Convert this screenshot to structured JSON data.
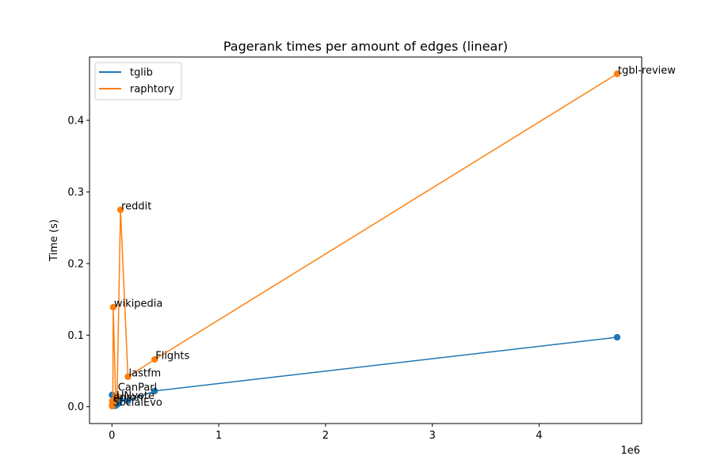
{
  "chart_data": {
    "type": "line",
    "title": "Pagerank times per amount of edges (linear)",
    "xlabel": "",
    "ylabel": "Time (s)",
    "x_offset_text": "1e6",
    "xlim": [
      -210000,
      4960000
    ],
    "ylim": [
      -0.0235,
      0.4885
    ],
    "xticks": [
      0,
      1000000,
      2000000,
      3000000,
      4000000
    ],
    "xtick_labels": [
      "0",
      "1",
      "2",
      "3",
      "4"
    ],
    "yticks": [
      0.0,
      0.1,
      0.2,
      0.3,
      0.4
    ],
    "ytick_labels": [
      "0.0",
      "0.1",
      "0.2",
      "0.3",
      "0.4"
    ],
    "legend_position": "upper-left",
    "series": [
      {
        "name": "tglib",
        "color": "#1f77b4",
        "points": [
          {
            "x": 1000,
            "y": 0.0165
          },
          {
            "x": 3000,
            "y": 0.0018
          },
          {
            "x": 5000,
            "y": 0.003
          },
          {
            "x": 8000,
            "y": 0.001
          },
          {
            "x": 12000,
            "y": 0.006
          },
          {
            "x": 35000,
            "y": 0.0015
          },
          {
            "x": 48000,
            "y": 0.003
          },
          {
            "x": 65000,
            "y": 0.005
          },
          {
            "x": 80000,
            "y": 0.01
          },
          {
            "x": 150000,
            "y": 0.008
          },
          {
            "x": 400000,
            "y": 0.022
          },
          {
            "x": 4730000,
            "y": 0.097
          }
        ]
      },
      {
        "name": "raphtory",
        "color": "#ff7f0e",
        "points": [
          {
            "x": 1000,
            "y": 0.001
          },
          {
            "x": 3000,
            "y": 0.008
          },
          {
            "x": 5000,
            "y": 0.003
          },
          {
            "x": 8000,
            "y": 0.004
          },
          {
            "x": 12000,
            "y": 0.139
          },
          {
            "x": 35000,
            "y": 0.01
          },
          {
            "x": 48000,
            "y": 0.015
          },
          {
            "x": 80000,
            "y": 0.275
          },
          {
            "x": 150000,
            "y": 0.042
          },
          {
            "x": 400000,
            "y": 0.066
          },
          {
            "x": 4730000,
            "y": 0.465
          }
        ]
      }
    ],
    "annotations": [
      {
        "text": "tgbl-review",
        "x": 4730000,
        "y": 0.465
      },
      {
        "text": "reddit",
        "x": 80000,
        "y": 0.275
      },
      {
        "text": "wikipedia",
        "x": 12000,
        "y": 0.139
      },
      {
        "text": "Flights",
        "x": 400000,
        "y": 0.066
      },
      {
        "text": "lastfm",
        "x": 150000,
        "y": 0.042
      },
      {
        "text": "CanParl",
        "x": 48000,
        "y": 0.022
      },
      {
        "text": "enron",
        "x": 5000,
        "y": 0.008
      },
      {
        "text": "UNvote",
        "x": 35000,
        "y": 0.01
      },
      {
        "text": "SocialEvo",
        "x": 1000,
        "y": 0.001
      }
    ]
  }
}
